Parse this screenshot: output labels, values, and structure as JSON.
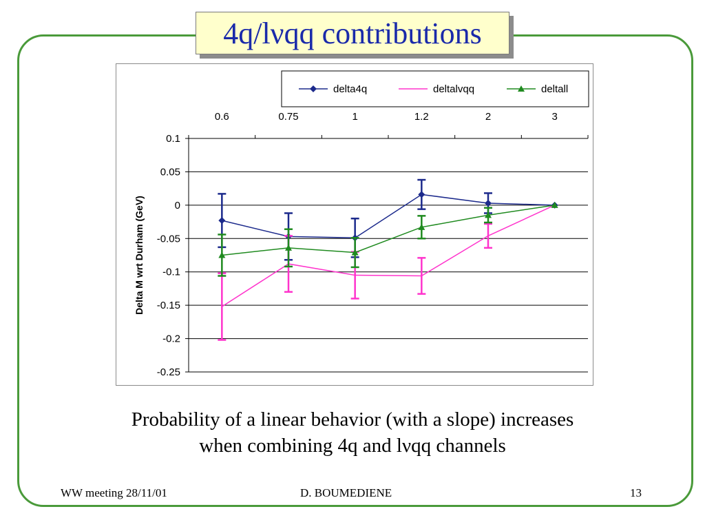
{
  "slide": {
    "title": "4q/lνqq contributions",
    "caption_line1": "Probability of a linear behavior (with a slope) increases",
    "caption_line2": "when combining 4q and lνqq channels",
    "footer_left": "WW meeting 28/11/01",
    "footer_center": "D. BOUMEDIENE",
    "footer_right": "13"
  },
  "colors": {
    "frame": "#4a9a3a",
    "title_text": "#1a2aaa",
    "title_bg": "#ffffcc",
    "delta4q": "#1c2a8c",
    "deltalvqq": "#ff33cc",
    "deltall": "#1f8a1f"
  },
  "chart_data": {
    "type": "line",
    "categories": [
      "0.6",
      "0.75",
      "1",
      "1.2",
      "2",
      "3"
    ],
    "x_axis_position": "top",
    "ylabel": "Delta M wrt Durham (GeV)",
    "ylim": [
      -0.25,
      0.1
    ],
    "yticks": [
      "0.1",
      "0.05",
      "0",
      "-0.05",
      "-0.1",
      "-0.15",
      "-0.2",
      "-0.25"
    ],
    "grid": true,
    "legend_position": "top",
    "series": [
      {
        "name": "delta4q",
        "marker": "diamond",
        "color": "#1c2a8c",
        "values": [
          -0.023,
          -0.047,
          -0.049,
          0.016,
          0.003,
          0.0
        ],
        "errors": [
          0.04,
          0.035,
          0.029,
          0.022,
          0.015,
          0.0
        ]
      },
      {
        "name": "deltalvqq",
        "marker": "none",
        "color": "#ff33cc",
        "values": [
          -0.152,
          -0.088,
          -0.105,
          -0.106,
          -0.046,
          0.0
        ],
        "errors": [
          0.05,
          0.042,
          0.035,
          0.027,
          0.018,
          0.0
        ]
      },
      {
        "name": "deltall",
        "marker": "triangle",
        "color": "#1f8a1f",
        "values": [
          -0.075,
          -0.064,
          -0.071,
          -0.033,
          -0.015,
          0.0
        ],
        "errors": [
          0.031,
          0.028,
          0.022,
          0.017,
          0.011,
          0.0
        ]
      }
    ]
  }
}
